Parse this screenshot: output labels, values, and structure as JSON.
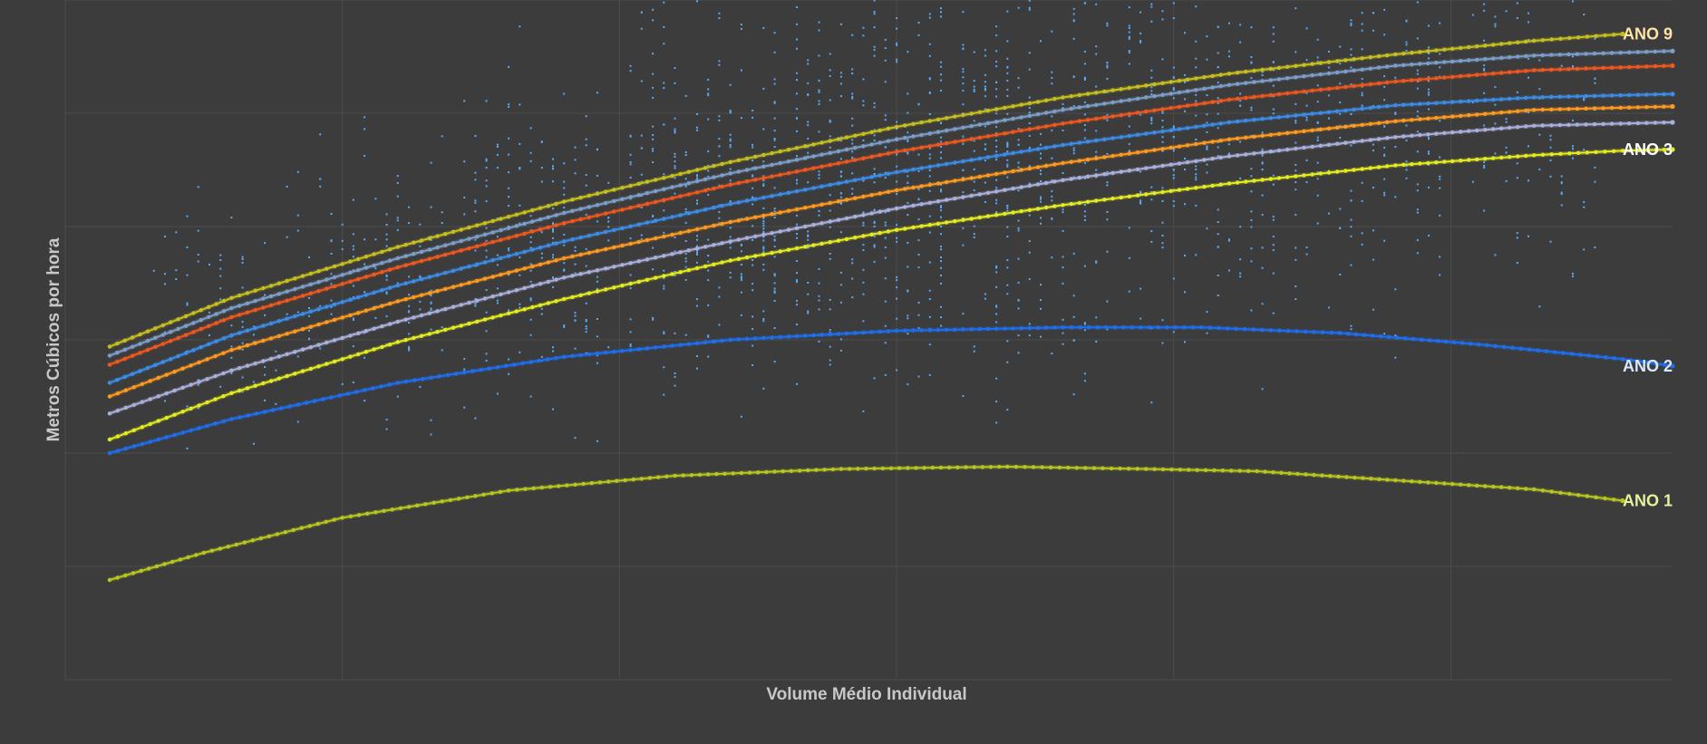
{
  "chart_data": {
    "type": "scatter",
    "title": "",
    "xlabel": "Volume Médio Individual",
    "ylabel": "Metros Cúbicos por  hora",
    "xlim": [
      0,
      29
    ],
    "ylim": [
      0,
      6
    ],
    "grid": true,
    "legend": "inline-right",
    "colors": {
      "background": "#3c3c3c",
      "grid": "#4c4c4c",
      "scatter": "#5aa9f5",
      "axis_title": "#c8c8c8"
    },
    "scatter_series": {
      "name": "",
      "color": "#5aa9f5",
      "clusters": [
        {
          "x_center": 2.8,
          "y_center": 3.2,
          "x_spread": 1.2,
          "y_spread": 0.5,
          "count": 80
        },
        {
          "x_center": 5.5,
          "y_center": 3.55,
          "x_spread": 1.3,
          "y_spread": 0.6,
          "count": 130
        },
        {
          "x_center": 8.5,
          "y_center": 3.9,
          "x_spread": 1.3,
          "y_spread": 0.7,
          "count": 200
        },
        {
          "x_center": 11.5,
          "y_center": 4.2,
          "x_spread": 1.4,
          "y_spread": 0.8,
          "count": 300
        },
        {
          "x_center": 14.5,
          "y_center": 4.5,
          "x_spread": 1.4,
          "y_spread": 0.9,
          "count": 360
        },
        {
          "x_center": 17.5,
          "y_center": 4.65,
          "x_spread": 1.4,
          "y_spread": 0.9,
          "count": 330
        },
        {
          "x_center": 20.5,
          "y_center": 4.8,
          "x_spread": 1.4,
          "y_spread": 0.9,
          "count": 280
        },
        {
          "x_center": 23.5,
          "y_center": 5.0,
          "x_spread": 1.4,
          "y_spread": 0.85,
          "count": 220
        },
        {
          "x_center": 26.5,
          "y_center": 5.1,
          "x_spread": 1.2,
          "y_spread": 0.8,
          "count": 110
        }
      ]
    },
    "series": [
      {
        "name": "ANO 1",
        "color": "#b9c61e",
        "label_color": "#e6f2a0",
        "labeled": true,
        "x": [
          0.8,
          2.5,
          5,
          8,
          11,
          14,
          17,
          19.5,
          21.5,
          24,
          26.5,
          28.1
        ],
        "y": [
          0.88,
          1.12,
          1.43,
          1.67,
          1.8,
          1.86,
          1.88,
          1.86,
          1.84,
          1.76,
          1.68,
          1.58
        ]
      },
      {
        "name": "ANO 2",
        "color": "#1e6ff0",
        "label_color": "#d7e8ff",
        "labeled": true,
        "x": [
          0.8,
          3,
          6,
          9,
          12,
          15,
          18,
          20.5,
          23,
          25.5,
          28.1,
          29
        ],
        "y": [
          2.0,
          2.3,
          2.62,
          2.85,
          3.0,
          3.08,
          3.11,
          3.11,
          3.06,
          2.96,
          2.83,
          2.77
        ]
      },
      {
        "name": "ANO 3",
        "color": "#e3ec1e",
        "label_color": "#ffffff",
        "labeled": true,
        "x": [
          0.8,
          3,
          6,
          9,
          12,
          15,
          18,
          21,
          24,
          26.5,
          28.1,
          29
        ],
        "y": [
          2.12,
          2.53,
          2.98,
          3.36,
          3.7,
          3.97,
          4.19,
          4.38,
          4.54,
          4.63,
          4.67,
          4.68
        ]
      },
      {
        "name": "",
        "color": "#aab0dc",
        "labeled": false,
        "x": [
          0.8,
          3,
          6,
          9,
          12,
          15,
          18,
          21,
          24,
          26.5,
          29
        ],
        "y": [
          2.35,
          2.73,
          3.16,
          3.55,
          3.87,
          4.16,
          4.41,
          4.62,
          4.79,
          4.89,
          4.92
        ]
      },
      {
        "name": "",
        "color": "#ff9a1e",
        "labeled": false,
        "x": [
          0.8,
          3,
          6,
          9,
          12,
          15,
          18,
          21,
          24,
          26.5,
          29
        ],
        "y": [
          2.5,
          2.91,
          3.34,
          3.72,
          4.04,
          4.32,
          4.56,
          4.77,
          4.93,
          5.03,
          5.06
        ]
      },
      {
        "name": "",
        "color": "#3c8ce8",
        "labeled": false,
        "x": [
          0.8,
          3,
          6,
          9,
          12,
          15,
          18,
          21,
          24,
          26.5,
          29
        ],
        "y": [
          2.62,
          3.04,
          3.48,
          3.87,
          4.2,
          4.48,
          4.72,
          4.92,
          5.07,
          5.14,
          5.17
        ]
      },
      {
        "name": "",
        "color": "#f0581e",
        "labeled": false,
        "x": [
          0.8,
          3,
          6,
          9,
          12,
          15,
          18,
          21,
          24,
          26.5,
          29
        ],
        "y": [
          2.78,
          3.2,
          3.64,
          4.03,
          4.37,
          4.66,
          4.91,
          5.12,
          5.28,
          5.38,
          5.42
        ]
      },
      {
        "name": "",
        "color": "#7d9ec8",
        "labeled": false,
        "x": [
          0.8,
          3,
          6,
          9,
          12,
          15,
          18,
          21,
          24,
          26.5,
          29
        ],
        "y": [
          2.86,
          3.28,
          3.72,
          4.12,
          4.47,
          4.77,
          5.03,
          5.25,
          5.42,
          5.51,
          5.55
        ]
      },
      {
        "name": "ANO 9",
        "color": "#c6c01e",
        "label_color": "#ffe3a8",
        "labeled": true,
        "x": [
          0.8,
          3,
          6,
          9,
          12,
          15,
          18,
          21,
          24,
          26.5,
          28.1
        ],
        "y": [
          2.94,
          3.37,
          3.82,
          4.22,
          4.57,
          4.88,
          5.14,
          5.35,
          5.52,
          5.64,
          5.7
        ]
      }
    ]
  }
}
